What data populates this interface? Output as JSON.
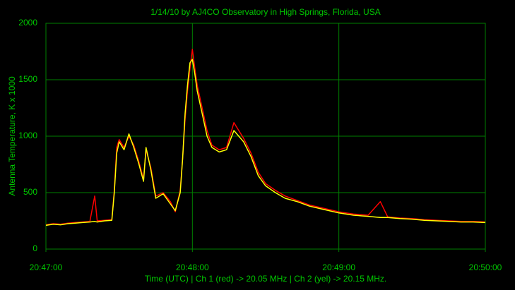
{
  "chart_data": {
    "type": "line",
    "title": "1/14/10  by  AJ4CO Observatory  in  High Springs, Florida, USA",
    "y_label": "Antenna Temperature, K x 1000",
    "x_label": "Time (UTC)  |  Ch 1 (red) -> 20.05 MHz  |  Ch 2 (yel) -> 20.15 MHz.",
    "x": [
      "20:47:00",
      "20:47:03",
      "20:47:06",
      "20:47:09",
      "20:47:12",
      "20:47:15",
      "20:47:18",
      "20:47:20",
      "20:47:21",
      "20:47:24",
      "20:47:27",
      "20:47:28",
      "20:47:29",
      "20:47:30",
      "20:47:32",
      "20:47:34",
      "20:47:36",
      "20:47:38",
      "20:47:40",
      "20:47:41",
      "20:47:43",
      "20:47:45",
      "20:47:48",
      "20:47:51",
      "20:47:53",
      "20:47:55",
      "20:47:56",
      "20:47:57",
      "20:47:58",
      "20:47:59",
      "20:48:00",
      "20:48:01",
      "20:48:02",
      "20:48:04",
      "20:48:06",
      "20:48:08",
      "20:48:11",
      "20:48:14",
      "20:48:17",
      "20:48:19",
      "20:48:21",
      "20:48:24",
      "20:48:27",
      "20:48:30",
      "20:48:34",
      "20:48:38",
      "20:48:43",
      "20:48:48",
      "20:48:54",
      "20:49:00",
      "20:49:06",
      "20:49:12",
      "20:49:17",
      "20:49:20",
      "20:49:25",
      "20:49:30",
      "20:49:35",
      "20:49:40",
      "20:49:45",
      "20:49:50",
      "20:49:55",
      "20:50:00"
    ],
    "series": [
      {
        "color": "#ff0000",
        "values": [
          215,
          225,
          220,
          230,
          235,
          240,
          245,
          470,
          250,
          255,
          260,
          520,
          900,
          970,
          900,
          1000,
          920,
          780,
          620,
          880,
          720,
          470,
          500,
          420,
          330,
          520,
          800,
          1150,
          1400,
          1600,
          1770,
          1600,
          1450,
          1250,
          1050,
          920,
          880,
          900,
          1120,
          1050,
          980,
          850,
          680,
          580,
          520,
          470,
          430,
          390,
          360,
          330,
          310,
          300,
          420,
          285,
          275,
          270,
          260,
          255,
          250,
          245,
          245,
          240
        ]
      },
      {
        "color": "#ffff00",
        "values": [
          210,
          220,
          215,
          225,
          230,
          235,
          240,
          245,
          240,
          250,
          255,
          500,
          850,
          950,
          880,
          1020,
          900,
          760,
          600,
          900,
          700,
          450,
          490,
          400,
          340,
          500,
          800,
          1200,
          1450,
          1650,
          1680,
          1550,
          1400,
          1200,
          1000,
          900,
          860,
          880,
          1050,
          1000,
          950,
          820,
          650,
          560,
          500,
          450,
          420,
          380,
          350,
          320,
          300,
          290,
          280,
          280,
          270,
          265,
          255,
          250,
          245,
          240,
          240,
          235
        ]
      }
    ],
    "xlim": [
      "20:47:00",
      "20:50:00"
    ],
    "xticks": [
      "20:47:00",
      "20:48:00",
      "20:49:00",
      "20:50:00"
    ],
    "ylim": [
      0,
      2000
    ],
    "yticks": [
      0,
      500,
      1000,
      1500,
      2000
    ],
    "grid": true
  }
}
